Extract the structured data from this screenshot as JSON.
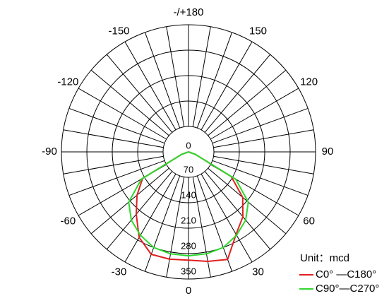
{
  "chart_data": {
    "type": "polar",
    "unit_label": "Unit：mcd",
    "x": [
      -80,
      -70,
      -60,
      -50,
      -40,
      -30,
      -20,
      -10,
      0,
      10,
      20,
      30,
      40,
      50,
      60,
      70,
      80
    ],
    "series": [
      {
        "name": "C0°  —C180°",
        "color": "#e02020",
        "values": [
          0,
          20,
          146,
          185,
          224,
          272,
          300,
          300,
          298,
          306,
          315,
          262,
          233,
          195,
          136,
          20,
          0
        ]
      },
      {
        "name": "C90°—C270°",
        "color": "#2ed82e",
        "values": [
          0,
          20,
          150,
          215,
          245,
          265,
          280,
          285,
          286,
          285,
          280,
          265,
          245,
          215,
          150,
          20,
          0
        ]
      }
    ],
    "rlim": [
      0,
      350
    ],
    "rticks": [
      0,
      70,
      140,
      210,
      280,
      350
    ],
    "xticks": [
      0,
      30,
      60,
      90,
      120,
      150,
      {
        "value": 180,
        "label": "-/+180"
      },
      -150,
      -120,
      -90,
      -60,
      -30
    ]
  }
}
